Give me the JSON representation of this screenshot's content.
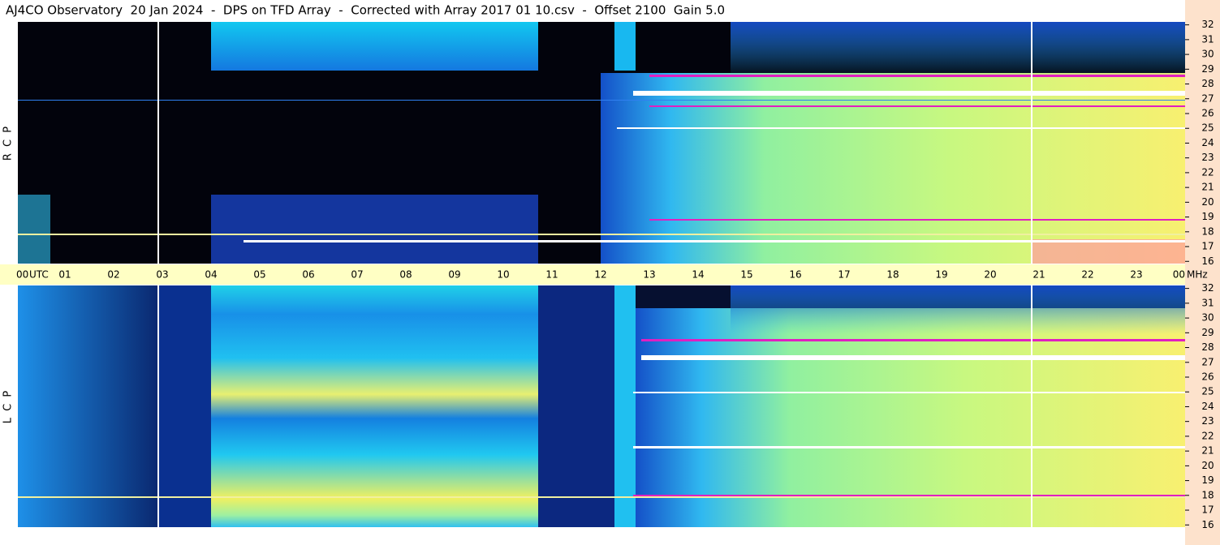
{
  "title": "AJ4CO Observatory  20 Jan 2024  -  DPS on TFD Array  -  Corrected with Array 2017 01 10.csv  -  Offset 2100  Gain 5.0",
  "chart_data": [
    {
      "type": "heatmap",
      "label": "R C P",
      "xlabel": "UTC",
      "yunit": "MHz",
      "xlim": [
        0,
        24
      ],
      "xticks": [
        {
          "value": 0,
          "label": "00"
        },
        {
          "value": 1,
          "label": "01"
        },
        {
          "value": 2,
          "label": "02"
        },
        {
          "value": 3,
          "label": "03"
        },
        {
          "value": 4,
          "label": "04"
        },
        {
          "value": 5,
          "label": "05"
        },
        {
          "value": 6,
          "label": "06"
        },
        {
          "value": 7,
          "label": "07"
        },
        {
          "value": 8,
          "label": "08"
        },
        {
          "value": 9,
          "label": "09"
        },
        10,
        11,
        12,
        13,
        14,
        15,
        16,
        17,
        18,
        19,
        20,
        21,
        22,
        23,
        {
          "value": 24,
          "label": "00"
        }
      ],
      "ylim": [
        15.85,
        32.2
      ],
      "yticks": [
        16,
        17,
        18,
        19,
        20,
        21,
        22,
        23,
        24,
        25,
        26,
        27,
        28,
        29,
        30,
        31,
        32
      ]
    },
    {
      "type": "heatmap",
      "label": "L C P",
      "ylim": [
        15.85,
        32.2
      ],
      "yticks": [
        16,
        17,
        18,
        19,
        20,
        21,
        22,
        23,
        24,
        25,
        26,
        27,
        28,
        29,
        30,
        31,
        32
      ]
    }
  ]
}
